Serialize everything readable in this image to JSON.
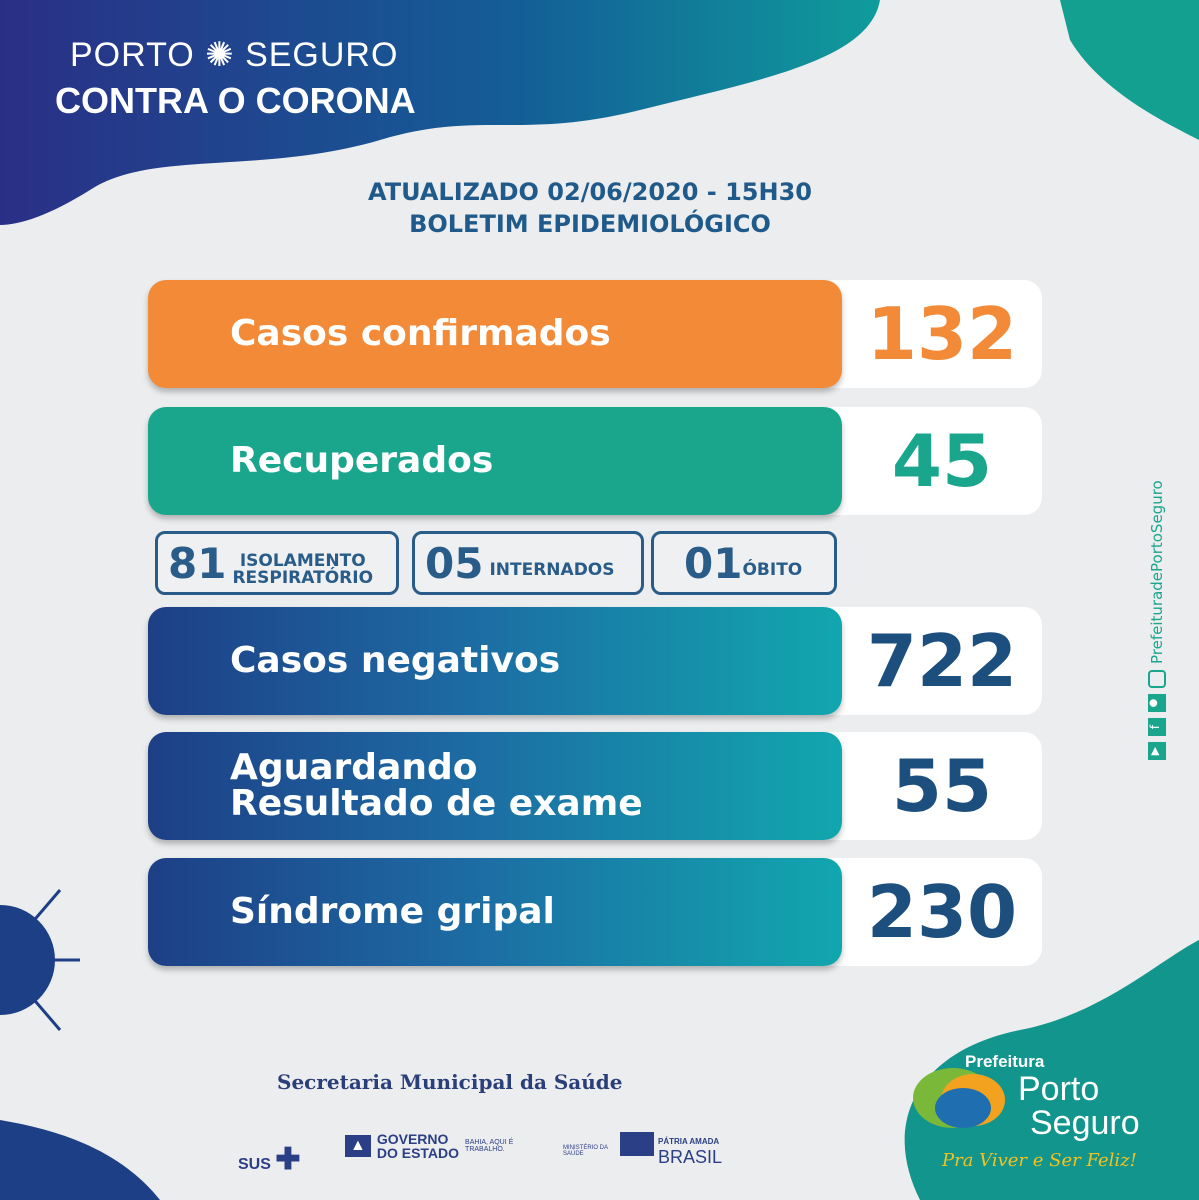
{
  "header": {
    "brand_line1_left": "PORTO",
    "brand_line1_right": "SEGURO",
    "brand_line2": "CONTRA O CORONA"
  },
  "update": {
    "line1": "ATUALIZADO 02/06/2020 - 15H30",
    "line2": "BOLETIM EPIDEMIOLÓGICO"
  },
  "stats": [
    {
      "label": "Casos confirmados",
      "value": "132",
      "color": "#f28a38"
    },
    {
      "label": "Recuperados",
      "value": "45",
      "color": "#1aa68d"
    },
    {
      "label": "Casos negativos",
      "value": "722",
      "color": "#1c4f7d"
    },
    {
      "label_line1": "Aguardando",
      "label_line2": "Resultado de exame",
      "value": "55",
      "color": "#1c4f7d"
    },
    {
      "label": "Síndrome gripal",
      "value": "230",
      "color": "#1c4f7d"
    }
  ],
  "sub": [
    {
      "value": "81",
      "label_line1": "ISOLAMENTO",
      "label_line2": "RESPIRATÓRIO"
    },
    {
      "value": "05",
      "label": "INTERNADOS"
    },
    {
      "value": "01",
      "label": "ÓBITO"
    }
  ],
  "social": {
    "handle": "PrefeituradePortoSeguro",
    "icons": [
      "youtube-icon",
      "facebook-icon",
      "flickr-icon",
      "instagram-icon"
    ]
  },
  "footer": {
    "secretaria": "Secretaria Municipal da Saúde",
    "sus": "SUS",
    "gov1": "GOVERNO",
    "gov2": "DO ESTADO",
    "bahia": "BAHIA, AQUI É TRABALHO.",
    "ministerio": "MINISTÉRIO DA SAÚDE",
    "patria": "PÁTRIA AMADA",
    "brasil": "BRASIL"
  },
  "prefeitura": {
    "line1": "Prefeitura",
    "line2": "Porto",
    "line3": "Seguro",
    "slogan": "Pra Viver e Ser Feliz!"
  }
}
